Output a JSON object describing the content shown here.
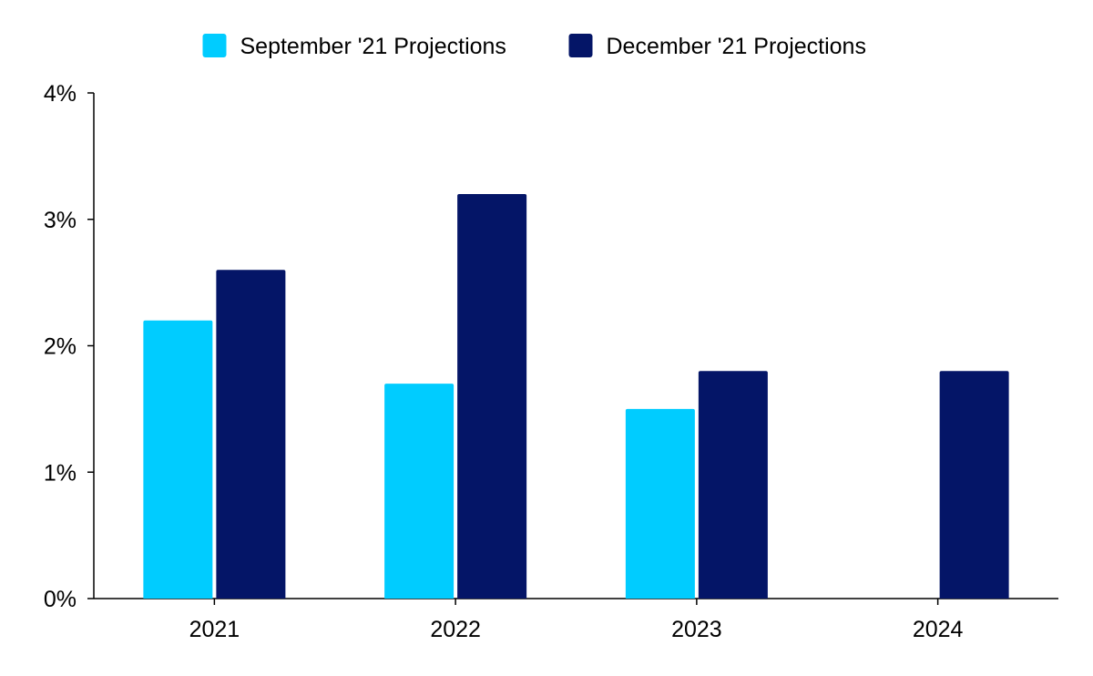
{
  "chart_data": {
    "type": "bar",
    "categories": [
      "2021",
      "2022",
      "2023",
      "2024"
    ],
    "series": [
      {
        "name": "September '21 Projections",
        "color": "#00CCFF",
        "values": [
          2.2,
          1.7,
          1.5,
          null
        ]
      },
      {
        "name": "December '21 Projections",
        "color": "#041567",
        "values": [
          2.6,
          3.2,
          1.8,
          1.8
        ]
      }
    ],
    "y_ticks": [
      "0%",
      "1%",
      "2%",
      "3%",
      "4%"
    ],
    "ylim": [
      0,
      4
    ],
    "title": "",
    "xlabel": "",
    "ylabel": "",
    "legend_position": "top-center",
    "grid": false
  }
}
